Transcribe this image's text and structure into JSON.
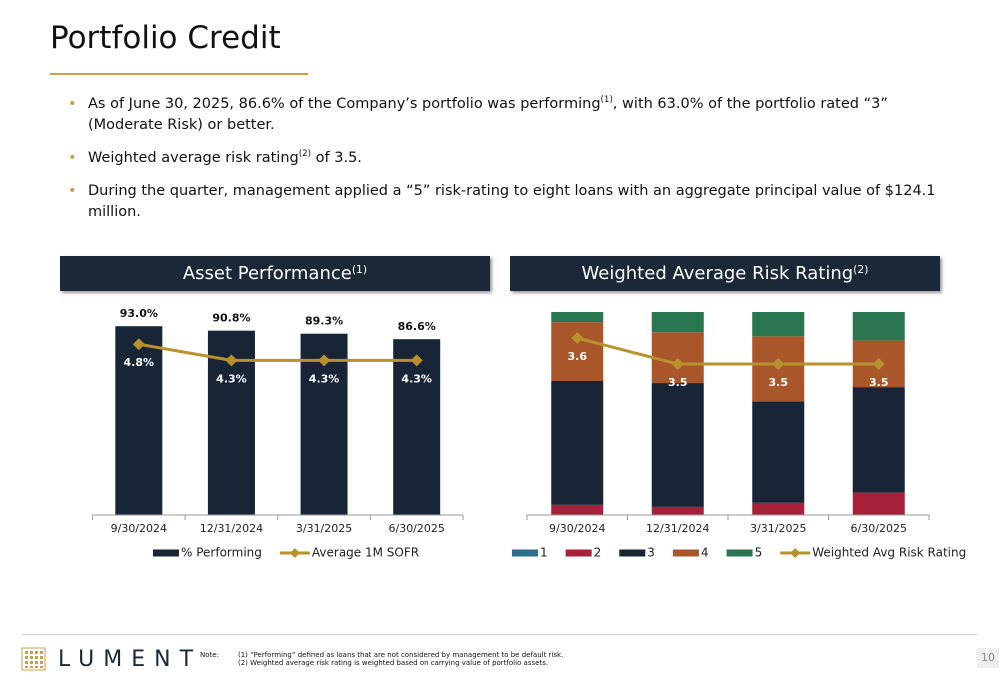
{
  "header": {
    "title": "Portfolio Credit"
  },
  "bullets": [
    [
      {
        "text": "As of June 30, 2025, 86.6% of the Company’s portfolio was performing"
      },
      {
        "sup": "(1)"
      },
      {
        "text": ", with 63.0% of the portfolio rated “3” (Moderate Risk) or better."
      }
    ],
    [
      {
        "text": "Weighted average risk rating"
      },
      {
        "sup": "(2)"
      },
      {
        "text": " of 3.5."
      }
    ],
    [
      {
        "text": "During the quarter, management applied a “5” risk-rating to eight loans with an aggregate principal value of $124.1 million."
      }
    ]
  ],
  "chart_data": [
    {
      "type": "bar",
      "title": {
        "text": "Asset Performance",
        "sup": "(1)"
      },
      "categories": [
        "9/30/2024",
        "12/31/2024",
        "3/31/2025",
        "6/30/2025"
      ],
      "series": [
        {
          "name": "% Performing",
          "color": "#172536",
          "values": [
            93.0,
            90.8,
            89.3,
            86.6
          ],
          "value_labels": [
            "93.0%",
            "90.8%",
            "89.3%",
            "86.6%"
          ]
        },
        {
          "name": "Average 1M SOFR",
          "type": "line",
          "axis": "y2",
          "color": "#b8912e",
          "values": [
            4.8,
            4.3,
            4.3,
            4.3
          ],
          "value_labels": [
            "4.8%",
            "4.3%",
            "4.3%",
            "4.3%"
          ]
        }
      ],
      "ylim": [
        0,
        100
      ],
      "y2lim": [
        -0.5,
        5.8
      ]
    },
    {
      "type": "stacked_bar",
      "title": {
        "text": "Weighted Average Risk Rating",
        "sup": "(2)"
      },
      "categories": [
        "9/30/2024",
        "12/31/2024",
        "3/31/2025",
        "6/30/2025"
      ],
      "series": [
        {
          "name": "1",
          "color": "#2e6f8e",
          "values": [
            0,
            0,
            0,
            0
          ]
        },
        {
          "name": "2",
          "color": "#a8213a",
          "values": [
            5,
            4,
            6,
            11
          ]
        },
        {
          "name": "3",
          "color": "#172536",
          "values": [
            61,
            61,
            50,
            52
          ]
        },
        {
          "name": "4",
          "color": "#a9572a",
          "values": [
            29,
            25,
            32,
            23
          ]
        },
        {
          "name": "5",
          "color": "#2a7650",
          "values": [
            5,
            10,
            12,
            14
          ]
        },
        {
          "name": "Weighted Avg Risk Rating",
          "type": "line",
          "axis": "y2",
          "color": "#b8912e",
          "values": [
            3.6,
            3.5,
            3.5,
            3.5
          ]
        }
      ],
      "ylim": [
        0,
        100
      ],
      "y2lim": [
        2.92,
        3.7
      ]
    }
  ],
  "footer": {
    "logo": "LUMENT",
    "note_label": "Note:",
    "notes": [
      "(1) “Performing” defined as loans that are not considered by management to be default risk.",
      "(2) Weighted average risk rating is weighted based on carrying value of portfolio assets."
    ],
    "page": "10"
  }
}
